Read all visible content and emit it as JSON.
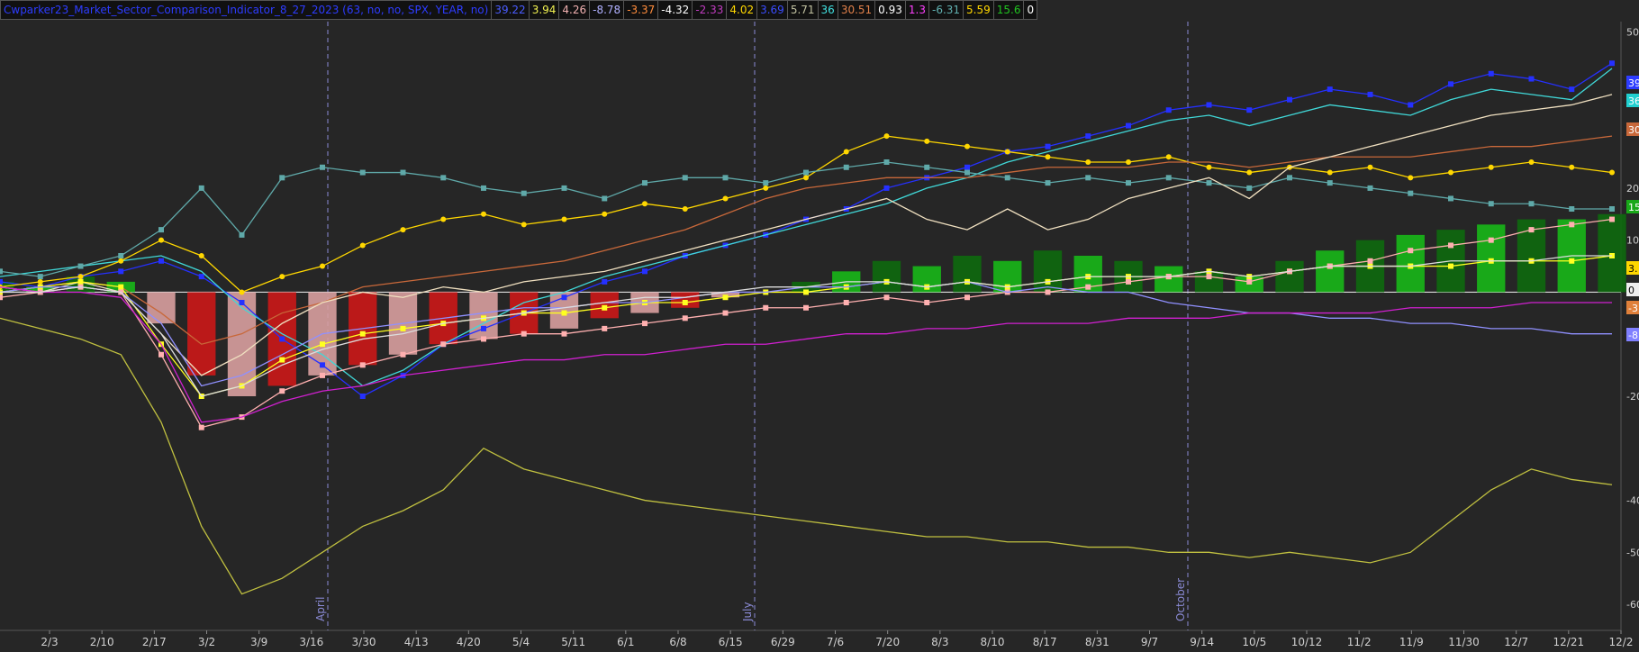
{
  "header": {
    "title": "Cwparker23_Market_Sector_Comparison_Indicator_8_27_2023 (63, no, no, SPX, YEAR, no)",
    "title_color": "#2d3cff",
    "values": [
      {
        "text": "39.22",
        "color": "#4a5cff",
        "bg": "#111"
      },
      {
        "text": "3.94",
        "color": "#f0f050",
        "bg": "#111"
      },
      {
        "text": "4.26",
        "color": "#f0b0b0",
        "bg": "#111"
      },
      {
        "text": "-8.78",
        "color": "#b0b0ff",
        "bg": "#111"
      },
      {
        "text": "-3.37",
        "color": "#ff8c3c",
        "bg": "#111"
      },
      {
        "text": "-4.32",
        "color": "#ffffff",
        "bg": "#111"
      },
      {
        "text": "-2.33",
        "color": "#c03cc0",
        "bg": "#111"
      },
      {
        "text": "4.02",
        "color": "#ffd700",
        "bg": "#111"
      },
      {
        "text": "3.69",
        "color": "#3a4cff",
        "bg": "#111"
      },
      {
        "text": "5.71",
        "color": "#c0c0a0",
        "bg": "#111"
      },
      {
        "text": "36",
        "color": "#40e0e0",
        "bg": "#111"
      },
      {
        "text": "30.51",
        "color": "#e0804a",
        "bg": "#111"
      },
      {
        "text": "0.93",
        "color": "#ffffff",
        "bg": "#111"
      },
      {
        "text": "1.3",
        "color": "#ff40ff",
        "bg": "#111"
      },
      {
        "text": "-6.31",
        "color": "#60b0b0",
        "bg": "#111"
      },
      {
        "text": "5.59",
        "color": "#ffd700",
        "bg": "#111"
      },
      {
        "text": "15.6",
        "color": "#20c020",
        "bg": "#111"
      },
      {
        "text": "0",
        "color": "#ffffff",
        "bg": "#111"
      }
    ]
  },
  "chart_data": {
    "type": "line",
    "x_ticks": [
      "2/3",
      "2/10",
      "2/17",
      "3/2",
      "3/9",
      "3/16",
      "3/30",
      "4/13",
      "4/20",
      "5/4",
      "5/11",
      "6/1",
      "6/8",
      "6/15",
      "6/29",
      "7/6",
      "7/20",
      "8/3",
      "8/10",
      "8/17",
      "8/31",
      "9/7",
      "9/14",
      "10/5",
      "10/12",
      "11/2",
      "11/9",
      "11/30",
      "12/7",
      "12/21",
      "12/2"
    ],
    "period_markers": [
      "April",
      "July",
      "October"
    ],
    "y_ticks": [
      50,
      20,
      10,
      -20,
      -40,
      -50,
      -60
    ],
    "ylim": [
      -65,
      52
    ],
    "right_badges": [
      {
        "text": "39",
        "color": "#2d3cff",
        "text_color": "#ffffff"
      },
      {
        "text": "36",
        "color": "#20d0d0",
        "text_color": "#ffffff"
      },
      {
        "text": "30",
        "color": "#c8683a",
        "text_color": "#ffffff"
      },
      {
        "text": "15",
        "color": "#18a818",
        "text_color": "#ffffff"
      },
      {
        "text": "3.",
        "color": "#ffd700",
        "text_color": "#000000"
      },
      {
        "text": "0",
        "color": "#eeeeee",
        "text_color": "#000000"
      },
      {
        "text": "-3",
        "color": "#e0803a",
        "text_color": "#ffffff"
      },
      {
        "text": "-8",
        "color": "#8080ff",
        "text_color": "#ffffff"
      }
    ],
    "histogram_note": "red/pink bars below zero, green bars above zero",
    "series": [
      {
        "color": "#2530ff",
        "marker": "square",
        "values": [
          2,
          1,
          3,
          4,
          6,
          3,
          -2,
          -9,
          -14,
          -20,
          -16,
          -10,
          -7,
          -4,
          -1,
          2,
          4,
          7,
          9,
          11,
          14,
          16,
          20,
          22,
          24,
          27,
          28,
          30,
          32,
          35,
          36,
          35,
          37,
          39,
          38,
          36,
          40,
          42,
          41,
          39,
          44
        ]
      },
      {
        "color": "#40d8d8",
        "marker": "none",
        "values": [
          3,
          4,
          5,
          6,
          7,
          4,
          -3,
          -8,
          -12,
          -18,
          -15,
          -10,
          -6,
          -2,
          0,
          3,
          5,
          7,
          9,
          11,
          13,
          15,
          17,
          20,
          22,
          25,
          27,
          29,
          31,
          33,
          34,
          32,
          34,
          36,
          35,
          34,
          37,
          39,
          38,
          37,
          43
        ]
      },
      {
        "color": "#ffd700",
        "marker": "circle",
        "values": [
          1,
          2,
          3,
          6,
          10,
          7,
          0,
          3,
          5,
          9,
          12,
          14,
          15,
          13,
          14,
          15,
          17,
          16,
          18,
          20,
          22,
          27,
          30,
          29,
          28,
          27,
          26,
          25,
          25,
          26,
          24,
          23,
          24,
          23,
          24,
          22,
          23,
          24,
          25,
          24,
          23
        ]
      },
      {
        "color": "#5fa9a9",
        "marker": "square",
        "values": [
          4,
          3,
          5,
          7,
          12,
          20,
          11,
          22,
          24,
          23,
          23,
          22,
          20,
          19,
          20,
          18,
          21,
          22,
          22,
          21,
          23,
          24,
          25,
          24,
          23,
          22,
          21,
          22,
          21,
          22,
          21,
          20,
          22,
          21,
          20,
          19,
          18,
          17,
          17,
          16,
          16
        ]
      },
      {
        "color": "#c8683a",
        "marker": "none",
        "values": [
          0,
          1,
          2,
          1,
          -4,
          -10,
          -8,
          -4,
          -2,
          1,
          2,
          3,
          4,
          5,
          6,
          8,
          10,
          12,
          15,
          18,
          20,
          21,
          22,
          22,
          22,
          23,
          24,
          24,
          24,
          25,
          25,
          24,
          25,
          26,
          26,
          26,
          27,
          28,
          28,
          29,
          30
        ]
      },
      {
        "color": "#f0e0c0",
        "marker": "none",
        "values": [
          1,
          0,
          2,
          0,
          -8,
          -16,
          -12,
          -6,
          -2,
          0,
          -1,
          1,
          0,
          2,
          3,
          4,
          6,
          8,
          10,
          12,
          14,
          16,
          18,
          14,
          12,
          16,
          12,
          14,
          18,
          20,
          22,
          18,
          24,
          26,
          28,
          30,
          32,
          34,
          35,
          36,
          38
        ]
      },
      {
        "color": "#ffff20",
        "marker": "square",
        "values": [
          0,
          1,
          2,
          1,
          -10,
          -20,
          -18,
          -13,
          -10,
          -8,
          -7,
          -6,
          -5,
          -4,
          -4,
          -3,
          -2,
          -2,
          -1,
          0,
          0,
          1,
          2,
          1,
          2,
          1,
          2,
          3,
          3,
          3,
          4,
          3,
          4,
          5,
          5,
          5,
          5,
          6,
          6,
          6,
          7
        ]
      },
      {
        "color": "#ffb0b0",
        "marker": "square",
        "values": [
          -1,
          0,
          1,
          0,
          -12,
          -26,
          -24,
          -19,
          -16,
          -14,
          -12,
          -10,
          -9,
          -8,
          -8,
          -7,
          -6,
          -5,
          -4,
          -3,
          -3,
          -2,
          -1,
          -2,
          -1,
          0,
          0,
          1,
          2,
          3,
          3,
          2,
          4,
          5,
          6,
          8,
          9,
          10,
          12,
          13,
          14
        ]
      },
      {
        "color": "#9090ff",
        "marker": "none",
        "values": [
          0,
          1,
          1,
          0,
          -6,
          -18,
          -16,
          -12,
          -8,
          -7,
          -6,
          -5,
          -4,
          -3,
          -3,
          -2,
          -2,
          -1,
          0,
          0,
          1,
          1,
          2,
          1,
          2,
          0,
          1,
          0,
          0,
          -2,
          -3,
          -4,
          -4,
          -5,
          -5,
          -6,
          -6,
          -7,
          -7,
          -8,
          -8
        ]
      },
      {
        "color": "#d020d0",
        "marker": "none",
        "values": [
          1,
          0,
          0,
          -1,
          -10,
          -25,
          -24,
          -21,
          -19,
          -18,
          -16,
          -15,
          -14,
          -13,
          -13,
          -12,
          -12,
          -11,
          -10,
          -10,
          -9,
          -8,
          -8,
          -7,
          -7,
          -6,
          -6,
          -6,
          -5,
          -5,
          -5,
          -4,
          -4,
          -4,
          -4,
          -3,
          -3,
          -3,
          -2,
          -2,
          -2
        ]
      },
      {
        "color": "#c0c040",
        "marker": "none",
        "values": [
          -5,
          -7,
          -9,
          -12,
          -25,
          -45,
          -58,
          -55,
          -50,
          -45,
          -42,
          -38,
          -30,
          -34,
          -36,
          -38,
          -40,
          -41,
          -42,
          -43,
          -44,
          -45,
          -46,
          -47,
          -47,
          -48,
          -48,
          -49,
          -49,
          -50,
          -50,
          -51,
          -50,
          -51,
          -52,
          -50,
          -44,
          -38,
          -34,
          -36,
          -37
        ]
      },
      {
        "color": "#dddddd",
        "marker": "none",
        "values": [
          0,
          0,
          1,
          0,
          -8,
          -20,
          -18,
          -14,
          -11,
          -9,
          -8,
          -6,
          -5,
          -4,
          -3,
          -2,
          -1,
          -1,
          0,
          1,
          1,
          2,
          2,
          1,
          2,
          1,
          2,
          3,
          3,
          3,
          4,
          3,
          4,
          5,
          5,
          5,
          6,
          6,
          6,
          7,
          7
        ]
      }
    ],
    "histogram": [
      2,
      1,
      3,
      2,
      -6,
      -16,
      -20,
      -18,
      -16,
      -14,
      -12,
      -10,
      -9,
      -8,
      -7,
      -5,
      -4,
      -3,
      -1,
      0,
      2,
      4,
      6,
      5,
      7,
      6,
      8,
      7,
      6,
      5,
      4,
      3,
      6,
      8,
      10,
      11,
      12,
      13,
      14,
      14,
      15
    ]
  }
}
